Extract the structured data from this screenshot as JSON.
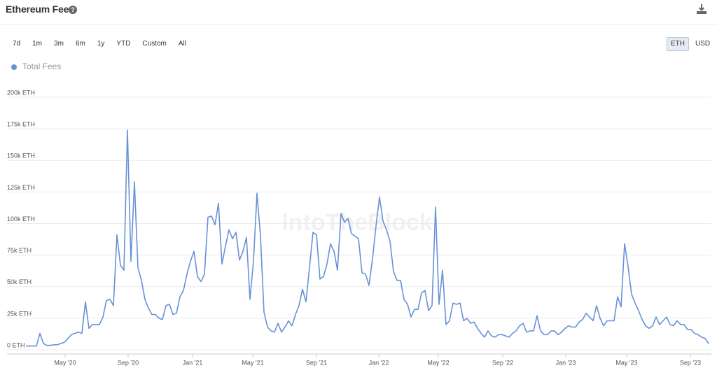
{
  "header": {
    "title": "Ethereum Fees",
    "help_icon": "?"
  },
  "controls": {
    "ranges": [
      "7d",
      "1m",
      "3m",
      "6m",
      "1y",
      "YTD",
      "Custom",
      "All"
    ],
    "units": [
      "ETH",
      "USD"
    ],
    "active_unit": "ETH"
  },
  "chart_data": {
    "type": "line",
    "watermark": "IntoTheBlock",
    "series": [
      {
        "name": "Total Fees",
        "color": "#6792d8",
        "values": [
          3000,
          3000,
          3000,
          3000,
          13000,
          5000,
          3500,
          3500,
          4000,
          4000,
          5000,
          6000,
          9000,
          12000,
          13000,
          14000,
          13000,
          38000,
          17000,
          20000,
          20000,
          20000,
          26000,
          39000,
          40000,
          35000,
          91000,
          67000,
          63000,
          174000,
          70000,
          133000,
          65000,
          55000,
          40000,
          33000,
          28000,
          28000,
          25000,
          24000,
          35000,
          36000,
          28000,
          29000,
          42000,
          47000,
          60000,
          70000,
          78000,
          58000,
          54000,
          60000,
          105000,
          106000,
          99000,
          116000,
          68000,
          82000,
          95000,
          88000,
          93000,
          71000,
          78000,
          89000,
          40000,
          70000,
          124000,
          90000,
          30000,
          18000,
          15000,
          14000,
          21000,
          14000,
          18000,
          23000,
          19000,
          28000,
          35000,
          48000,
          38000,
          65000,
          93000,
          91000,
          56000,
          58000,
          68000,
          84000,
          78000,
          63000,
          108000,
          101000,
          104000,
          92000,
          90000,
          88000,
          61000,
          60000,
          51000,
          72000,
          98000,
          121000,
          102000,
          95000,
          86000,
          62000,
          55000,
          55000,
          40000,
          36000,
          26000,
          32000,
          32000,
          45000,
          47000,
          31000,
          35000,
          113000,
          36000,
          63000,
          20000,
          23000,
          37000,
          36000,
          37000,
          23000,
          25000,
          21000,
          22000,
          17000,
          13000,
          10000,
          15000,
          11000,
          10000,
          12000,
          12000,
          11000,
          10000,
          13000,
          15000,
          19000,
          21000,
          14000,
          15000,
          15000,
          27000,
          15000,
          12000,
          12000,
          15000,
          15000,
          12000,
          14000,
          17000,
          19000,
          18000,
          18000,
          22000,
          24000,
          29000,
          26000,
          23000,
          35000,
          25000,
          19000,
          23000,
          23000,
          23000,
          42000,
          34000,
          84000,
          66000,
          44000,
          37000,
          31000,
          24000,
          19000,
          17000,
          19000,
          26000,
          20000,
          23000,
          26000,
          20000,
          19000,
          23000,
          20000,
          20000,
          16000,
          16000,
          13000,
          12000,
          10000,
          9000,
          5000
        ]
      }
    ],
    "ylim": [
      0,
      200000
    ],
    "yticks": [
      {
        "value": 0,
        "label": "0 ETH"
      },
      {
        "value": 25000,
        "label": "25k ETH"
      },
      {
        "value": 50000,
        "label": "50k ETH"
      },
      {
        "value": 75000,
        "label": "75k ETH"
      },
      {
        "value": 100000,
        "label": "100k ETH"
      },
      {
        "value": 125000,
        "label": "125k ETH"
      },
      {
        "value": 150000,
        "label": "150k ETH"
      },
      {
        "value": 175000,
        "label": "175k ETH"
      },
      {
        "value": 200000,
        "label": "200k ETH"
      }
    ],
    "xlim": [
      0,
      195
    ],
    "xticks": [
      {
        "value": 11.2,
        "label": "May '20"
      },
      {
        "value": 29.2,
        "label": "Sep '20"
      },
      {
        "value": 47.6,
        "label": "Jan '21"
      },
      {
        "value": 64.8,
        "label": "May '21"
      },
      {
        "value": 83,
        "label": "Sep '21"
      },
      {
        "value": 100.8,
        "label": "Jan '22"
      },
      {
        "value": 117.8,
        "label": "May '22"
      },
      {
        "value": 136.2,
        "label": "Sep '22"
      },
      {
        "value": 154.2,
        "label": "Jan '23"
      },
      {
        "value": 171.6,
        "label": "May '23"
      },
      {
        "value": 189.8,
        "label": "Sep '23"
      }
    ],
    "grid": true,
    "legend": "top-left"
  }
}
